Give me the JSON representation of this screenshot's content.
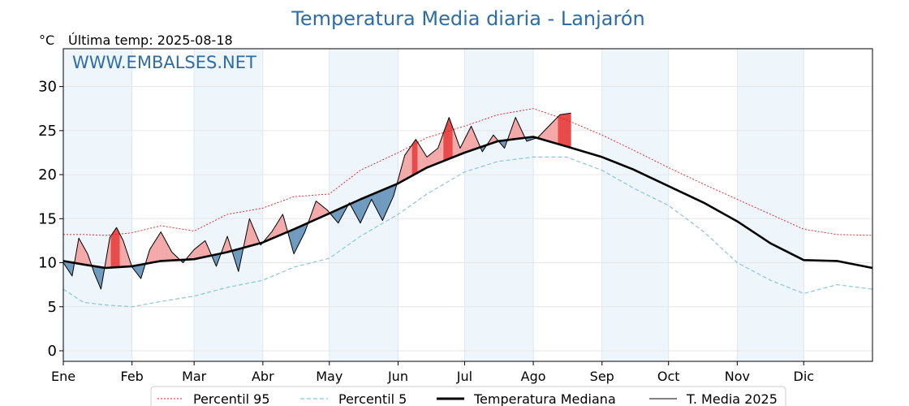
{
  "chart_data": {
    "type": "line",
    "title": "Temperatura Media diaria - Lanjarón",
    "unit_label": "°C",
    "last_temp_label": "Última temp: 2025-08-18",
    "watermark": "WWW.EMBALSES.NET",
    "ylim": [
      -1.2,
      34.3
    ],
    "xlim": [
      1,
      366
    ],
    "yticks": [
      0,
      5,
      10,
      15,
      20,
      25,
      30
    ],
    "months": [
      {
        "label": "Ene",
        "day": 1
      },
      {
        "label": "Feb",
        "day": 32
      },
      {
        "label": "Mar",
        "day": 60
      },
      {
        "label": "Abr",
        "day": 91
      },
      {
        "label": "May",
        "day": 121
      },
      {
        "label": "Jun",
        "day": 152
      },
      {
        "label": "Jul",
        "day": 182
      },
      {
        "label": "Ago",
        "day": 213
      },
      {
        "label": "Sep",
        "day": 244
      },
      {
        "label": "Oct",
        "day": 274
      },
      {
        "label": "Nov",
        "day": 305
      },
      {
        "label": "Dic",
        "day": 335
      }
    ],
    "grid": true,
    "legend_position": "bottom",
    "colors": {
      "p95": "#e31a1c",
      "p5": "#88c6dc",
      "median": "#000000",
      "current": "#000000",
      "above_fill": "#f4a9a9",
      "above_strong": "#e84a4a",
      "below_fill": "#6f9bbf",
      "shade": "#eef5fb"
    },
    "series": [
      {
        "name": "Percentil 95",
        "key": "p95",
        "x": [
          1,
          10,
          20,
          32,
          45,
          60,
          75,
          91,
          105,
          121,
          135,
          152,
          165,
          182,
          197,
          213,
          228,
          244,
          258,
          274,
          290,
          305,
          320,
          335,
          350,
          366
        ],
        "y": [
          13.2,
          13.2,
          13.1,
          13.4,
          14.2,
          13.6,
          15.5,
          16.2,
          17.5,
          17.8,
          20.5,
          22.5,
          24.2,
          25.5,
          26.8,
          27.5,
          26.2,
          24.5,
          22.8,
          20.8,
          18.9,
          17.2,
          15.5,
          13.8,
          13.2,
          13.1
        ]
      },
      {
        "name": "Percentil 5",
        "key": "p5",
        "x": [
          1,
          10,
          20,
          32,
          45,
          60,
          75,
          91,
          105,
          121,
          135,
          152,
          165,
          182,
          197,
          213,
          228,
          244,
          258,
          274,
          290,
          305,
          320,
          335,
          350,
          366
        ],
        "y": [
          7.0,
          5.5,
          5.2,
          5.0,
          5.6,
          6.2,
          7.2,
          8.0,
          9.5,
          10.5,
          13.0,
          15.5,
          17.8,
          20.3,
          21.5,
          22.0,
          22.0,
          20.5,
          18.5,
          16.5,
          13.5,
          10.0,
          8.0,
          6.5,
          7.5,
          7.0
        ]
      },
      {
        "name": "Temperatura Mediana",
        "key": "median",
        "x": [
          1,
          10,
          20,
          32,
          45,
          60,
          75,
          91,
          105,
          121,
          135,
          152,
          165,
          182,
          197,
          213,
          228,
          244,
          258,
          274,
          290,
          305,
          320,
          335,
          350,
          366
        ],
        "y": [
          10.2,
          9.8,
          9.4,
          9.6,
          10.2,
          10.4,
          11.2,
          12.3,
          13.8,
          15.6,
          17.2,
          19.0,
          20.8,
          22.5,
          23.8,
          24.3,
          23.2,
          22.0,
          20.6,
          18.7,
          16.8,
          14.7,
          12.2,
          10.3,
          10.2,
          9.4
        ]
      },
      {
        "name": "T. Media 2025",
        "key": "current",
        "x": [
          1,
          5,
          8,
          12,
          15,
          18,
          22,
          25,
          28,
          32,
          36,
          40,
          45,
          50,
          55,
          60,
          65,
          70,
          75,
          80,
          85,
          90,
          95,
          100,
          105,
          110,
          115,
          120,
          125,
          130,
          135,
          140,
          145,
          150,
          155,
          160,
          165,
          170,
          175,
          180,
          185,
          190,
          195,
          200,
          205,
          210,
          215,
          220,
          225,
          230
        ],
        "y": [
          10.0,
          8.5,
          12.8,
          11.0,
          8.8,
          7.0,
          12.9,
          14.0,
          12.5,
          9.5,
          8.2,
          11.5,
          13.5,
          11.2,
          10.0,
          11.5,
          12.5,
          9.6,
          13.0,
          9.0,
          15.0,
          12.0,
          13.5,
          15.5,
          11.0,
          13.5,
          17.0,
          16.0,
          14.5,
          16.8,
          14.5,
          17.2,
          14.8,
          17.6,
          22.2,
          24.0,
          22.0,
          23.0,
          26.5,
          23.0,
          25.5,
          22.6,
          24.5,
          23.0,
          26.5,
          23.8,
          24.2,
          25.5,
          26.8,
          27.0
        ]
      }
    ]
  }
}
